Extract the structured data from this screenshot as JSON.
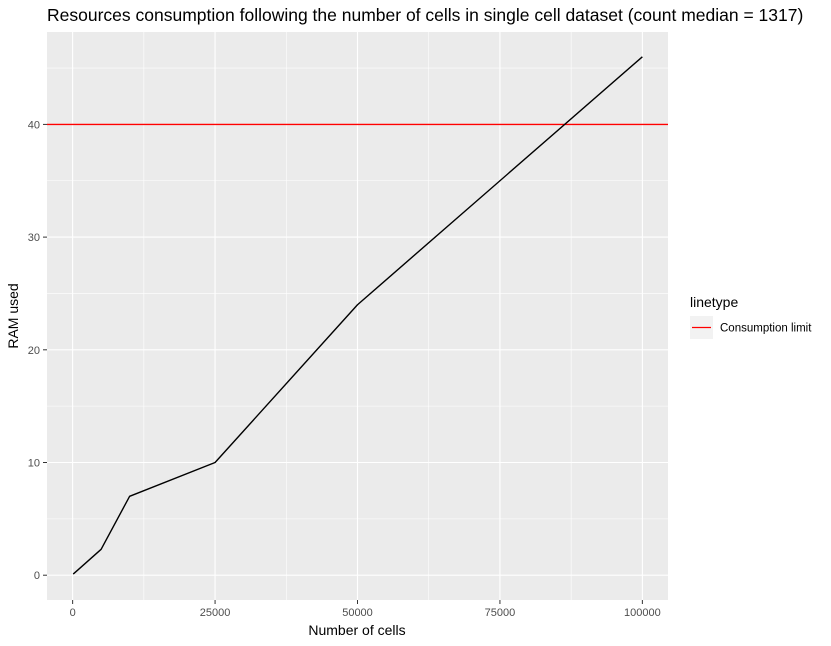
{
  "chart_data": {
    "type": "line",
    "title": "Resources consumption following the number of cells in single cell dataset (count median = 1317)",
    "xlabel": "Number of cells",
    "ylabel": "RAM used",
    "xlim": [
      -4500,
      104500
    ],
    "ylim": [
      -2.2,
      48.2
    ],
    "x_ticks": [
      0,
      25000,
      50000,
      75000,
      100000
    ],
    "x_tick_labels": [
      "0",
      "25000",
      "50000",
      "75000",
      "100000"
    ],
    "x_minor_ticks": [
      12500,
      37500,
      62500,
      87500
    ],
    "y_ticks": [
      0,
      10,
      20,
      30,
      40
    ],
    "y_tick_labels": [
      "0",
      "10",
      "20",
      "30",
      "40"
    ],
    "y_minor_ticks": [
      5,
      15,
      25,
      35,
      45
    ],
    "grid": true,
    "series": [
      {
        "x": [
          100,
          1000,
          5000,
          10000,
          25000,
          50000,
          100000
        ],
        "y": [
          0.1,
          0.5,
          2.3,
          7.0,
          10.0,
          24.0,
          46.0
        ],
        "color": "#000000"
      }
    ],
    "hlines": [
      {
        "y": 40,
        "color": "#ff0000",
        "name": "Consumption limit"
      }
    ],
    "legend": {
      "title": "linetype",
      "position": "right",
      "entries": [
        {
          "label": "Consumption limit",
          "color": "#ff0000"
        }
      ]
    },
    "colors": {
      "panel": "#ebebeb",
      "grid": "#ffffff",
      "series": "#000000",
      "limit": "#ff0000"
    }
  }
}
